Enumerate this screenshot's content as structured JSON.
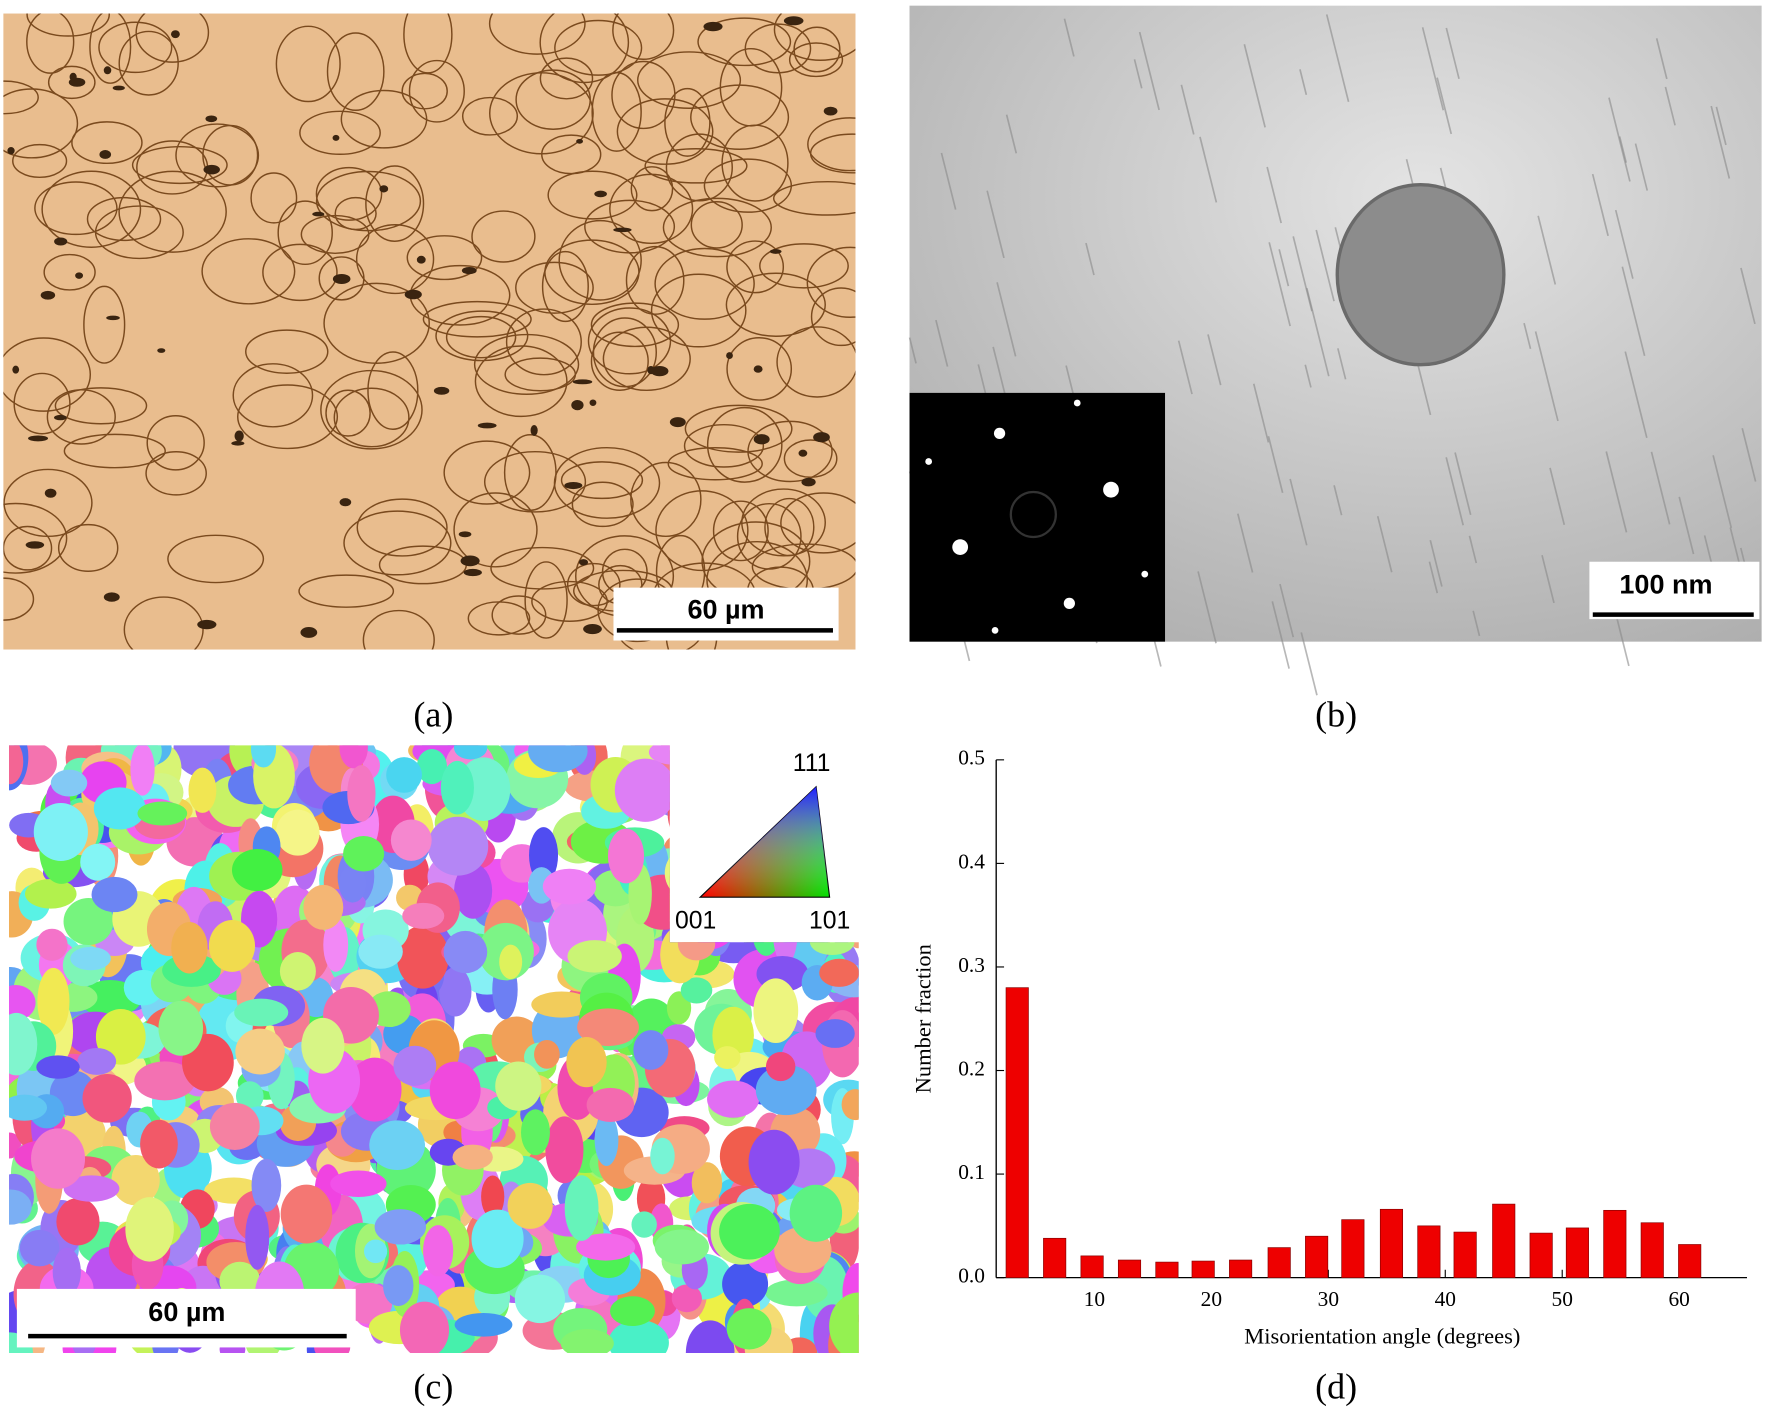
{
  "figure": {
    "panel_a": {
      "label": "(a)",
      "scale_bar": "60 µm"
    },
    "panel_b": {
      "label": "(b)",
      "scale_bar": "100 nm"
    },
    "panel_c": {
      "label": "(c)",
      "scale_bar": "60 µm",
      "ipf_key": {
        "top": "111",
        "left": "001",
        "right": "101"
      }
    },
    "panel_d": {
      "label": "(d)"
    }
  },
  "chart_data": {
    "type": "bar",
    "x_label": "Misorientation angle (degrees)",
    "y_label": "Number fraction",
    "x": [
      3.4,
      6.6,
      9.8,
      13.0,
      16.2,
      19.3,
      22.5,
      25.8,
      29.0,
      32.1,
      35.4,
      38.6,
      41.7,
      45.0,
      48.2,
      51.3,
      54.5,
      57.7,
      60.9
    ],
    "values": [
      0.28,
      0.038,
      0.021,
      0.017,
      0.015,
      0.016,
      0.017,
      0.029,
      0.04,
      0.056,
      0.066,
      0.05,
      0.044,
      0.071,
      0.043,
      0.048,
      0.065,
      0.053,
      0.032
    ],
    "color": "#ee0000",
    "xlim": [
      1.6,
      65.8
    ],
    "xticks": [
      10,
      20,
      30,
      40,
      50,
      60
    ],
    "ylim": [
      0,
      0.5
    ],
    "yticks": [
      {
        "value": 0,
        "label": "0.0"
      },
      0.1,
      0.2,
      0.3,
      0.4,
      0.5
    ]
  }
}
